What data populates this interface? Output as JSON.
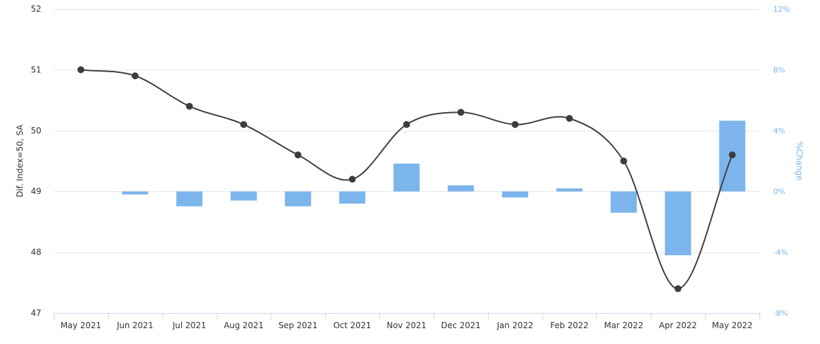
{
  "chart_data": {
    "type": "bar+line",
    "categories": [
      "May 2021",
      "Jun 2021",
      "Jul 2021",
      "Aug 2021",
      "Sep 2021",
      "Oct 2021",
      "Nov 2021",
      "Dec 2021",
      "Jan 2022",
      "Feb 2022",
      "Mar 2022",
      "Apr 2022",
      "May 2022"
    ],
    "series": [
      {
        "type": "line",
        "axis": "left",
        "color": "#3d3d3d",
        "values": [
          51.0,
          50.9,
          50.4,
          50.1,
          49.6,
          49.2,
          50.1,
          50.3,
          50.1,
          50.2,
          49.5,
          47.4,
          49.6
        ]
      },
      {
        "type": "bar",
        "axis": "right",
        "color": "#7cb5ec",
        "values": [
          null,
          -0.2,
          -0.98,
          -0.6,
          -0.98,
          -0.8,
          1.83,
          0.4,
          -0.4,
          0.2,
          -1.4,
          -4.2,
          4.65
        ]
      }
    ],
    "y_left": {
      "label": "Dif. Index=50, SA",
      "range": [
        47,
        52
      ],
      "ticks": [
        "47",
        "48",
        "49",
        "50",
        "51",
        "52"
      ],
      "tick_values": [
        47,
        48,
        49,
        50,
        51,
        52
      ]
    },
    "y_right": {
      "label": "%Change",
      "range": [
        -8,
        12
      ],
      "ticks": [
        "-8%",
        "-4%",
        "0%",
        "4%",
        "8%",
        "12%"
      ],
      "tick_values": [
        -8,
        -4,
        0,
        4,
        8,
        12
      ]
    },
    "grid": true,
    "legend": "none"
  }
}
